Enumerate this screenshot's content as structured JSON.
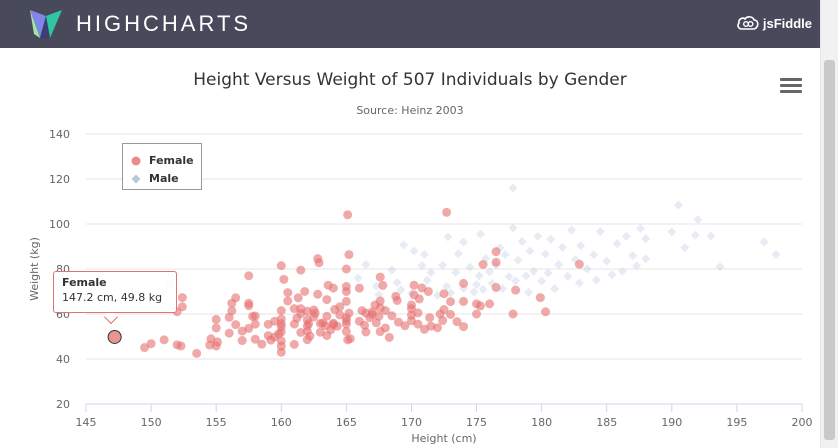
{
  "header": {
    "brand": "HIGHCHARTS",
    "jsfiddle_label": "jsFiddle"
  },
  "menu_icon": "hamburger-icon",
  "colors": {
    "female": "#e66f6f",
    "male": "#b9c7dc",
    "header_bg": "#484a5c"
  },
  "chart_data": {
    "type": "scatter",
    "title": "Height Versus Weight of 507 Individuals by Gender",
    "subtitle": "Source: Heinz 2003",
    "xlabel": "Height (cm)",
    "ylabel": "Weight (kg)",
    "xlim": [
      145,
      200
    ],
    "ylim": [
      20,
      140
    ],
    "xticks": [
      "145",
      "150",
      "155",
      "160",
      "165",
      "170",
      "175",
      "180",
      "185",
      "190",
      "195",
      "200"
    ],
    "yticks": [
      "20",
      "40",
      "60",
      "80",
      "100",
      "120",
      "140"
    ],
    "legend_position": "top-left",
    "series": [
      {
        "name": "Female",
        "color": "#e66f6f",
        "marker": "circle",
        "points": [
          [
            147.2,
            49.8
          ],
          [
            149.5,
            45.1
          ],
          [
            150.0,
            46.8
          ],
          [
            151.0,
            48.5
          ],
          [
            151.5,
            73.2
          ],
          [
            152.0,
            46.3
          ],
          [
            152.3,
            45.8
          ],
          [
            152.4,
            67.3
          ],
          [
            152.0,
            61.0
          ],
          [
            152.4,
            63.2
          ],
          [
            153.5,
            42.5
          ],
          [
            154.5,
            46.2
          ],
          [
            154.6,
            49.0
          ],
          [
            155.0,
            57.6
          ],
          [
            155.0,
            53.8
          ],
          [
            155.1,
            47.6
          ],
          [
            155.0,
            45.8
          ],
          [
            156.0,
            58.5
          ],
          [
            156.0,
            51.5
          ],
          [
            156.2,
            61.4
          ],
          [
            156.5,
            55.3
          ],
          [
            156.2,
            64.8
          ],
          [
            156.5,
            67.2
          ],
          [
            157.0,
            52.4
          ],
          [
            157.0,
            48.2
          ],
          [
            157.5,
            63.7
          ],
          [
            157.5,
            53.6
          ],
          [
            157.5,
            64.8
          ],
          [
            157.8,
            58.9
          ],
          [
            157.5,
            77.0
          ],
          [
            158.0,
            48.8
          ],
          [
            158.0,
            55.5
          ],
          [
            158.5,
            46.6
          ],
          [
            158.0,
            59.1
          ],
          [
            159.0,
            55.4
          ],
          [
            159.0,
            50.4
          ],
          [
            159.2,
            48.4
          ],
          [
            159.5,
            49.8
          ],
          [
            159.5,
            56.8
          ],
          [
            159.8,
            51.2
          ],
          [
            160.0,
            54.3
          ],
          [
            160.0,
            55.7
          ],
          [
            160.0,
            52.0
          ],
          [
            160.0,
            61.5
          ],
          [
            160.0,
            48.1
          ],
          [
            160.0,
            45.7
          ],
          [
            160.0,
            43.0
          ],
          [
            160.0,
            57.8
          ],
          [
            160.2,
            75.4
          ],
          [
            160.0,
            81.5
          ],
          [
            160.5,
            65.8
          ],
          [
            160.5,
            69.5
          ],
          [
            161.0,
            46.5
          ],
          [
            161.0,
            62.4
          ],
          [
            161.0,
            55.5
          ],
          [
            161.2,
            58.2
          ],
          [
            161.3,
            67.2
          ],
          [
            161.5,
            62.4
          ],
          [
            161.5,
            51.8
          ],
          [
            161.5,
            60.2
          ],
          [
            161.8,
            70.0
          ],
          [
            161.5,
            79.5
          ],
          [
            162.0,
            48.6
          ],
          [
            162.0,
            54.7
          ],
          [
            162.0,
            52.3
          ],
          [
            162.0,
            61.2
          ],
          [
            162.0,
            57.4
          ],
          [
            162.1,
            55.7
          ],
          [
            162.2,
            50.2
          ],
          [
            162.5,
            58.7
          ],
          [
            162.6,
            60.4
          ],
          [
            162.8,
            84.6
          ],
          [
            162.9,
            82.8
          ],
          [
            162.5,
            61.8
          ],
          [
            162.8,
            68.8
          ],
          [
            163.0,
            55.8
          ],
          [
            163.0,
            51.9
          ],
          [
            163.2,
            56.0
          ],
          [
            163.4,
            54.8
          ],
          [
            163.5,
            66.4
          ],
          [
            163.5,
            59.0
          ],
          [
            163.6,
            72.8
          ],
          [
            163.8,
            53.0
          ],
          [
            163.5,
            50.4
          ],
          [
            164.0,
            55.9
          ],
          [
            164.0,
            55.3
          ],
          [
            164.1,
            62.0
          ],
          [
            164.5,
            59.6
          ],
          [
            164.5,
            63.2
          ],
          [
            164.0,
            71.5
          ],
          [
            164.3,
            54.6
          ],
          [
            165.0,
            57.0
          ],
          [
            165.0,
            52.2
          ],
          [
            165.0,
            55.5
          ],
          [
            165.0,
            58.3
          ],
          [
            165.1,
            48.5
          ],
          [
            165.2,
            60.4
          ],
          [
            165.0,
            65.6
          ],
          [
            165.0,
            70.0
          ],
          [
            165.0,
            80.0
          ],
          [
            165.2,
            86.4
          ],
          [
            165.1,
            104.1
          ],
          [
            165.0,
            72.2
          ],
          [
            165.3,
            49.0
          ],
          [
            166.0,
            56.8
          ],
          [
            166.2,
            61.5
          ],
          [
            166.4,
            55.0
          ],
          [
            166.5,
            60.4
          ],
          [
            166.0,
            71.5
          ],
          [
            166.5,
            52.0
          ],
          [
            166.8,
            58.4
          ],
          [
            167.0,
            59.8
          ],
          [
            167.0,
            61.0
          ],
          [
            167.2,
            64.0
          ],
          [
            167.3,
            56.1
          ],
          [
            167.5,
            59.0
          ],
          [
            167.6,
            52.2
          ],
          [
            167.6,
            62.7
          ],
          [
            167.6,
            65.8
          ],
          [
            167.8,
            72.7
          ],
          [
            167.6,
            76.4
          ],
          [
            168.0,
            53.8
          ],
          [
            168.3,
            49.6
          ],
          [
            168.5,
            59.2
          ],
          [
            168.0,
            61.5
          ],
          [
            168.8,
            67.9
          ],
          [
            169.0,
            56.4
          ],
          [
            169.5,
            54.8
          ],
          [
            170.0,
            59.5
          ],
          [
            170.0,
            62.4
          ],
          [
            170.0,
            64.0
          ],
          [
            170.2,
            68.5
          ],
          [
            170.2,
            72.8
          ],
          [
            170.0,
            57.0
          ],
          [
            170.5,
            55.5
          ],
          [
            170.5,
            60.5
          ],
          [
            170.6,
            66.7
          ],
          [
            170.8,
            71.6
          ],
          [
            171.0,
            53.2
          ],
          [
            171.3,
            70.0
          ],
          [
            171.5,
            54.6
          ],
          [
            172.0,
            53.9
          ],
          [
            172.2,
            60.0
          ],
          [
            172.4,
            57.1
          ],
          [
            172.5,
            69.0
          ],
          [
            172.7,
            105.2
          ],
          [
            172.5,
            62.0
          ],
          [
            173.0,
            65.5
          ],
          [
            173.0,
            59.8
          ],
          [
            173.5,
            56.6
          ],
          [
            174.0,
            54.4
          ],
          [
            174.0,
            65.6
          ],
          [
            174.0,
            73.6
          ],
          [
            175.0,
            60.0
          ],
          [
            175.0,
            64.5
          ],
          [
            175.3,
            63.6
          ],
          [
            175.5,
            82.0
          ],
          [
            176.0,
            64.5
          ],
          [
            176.5,
            71.8
          ],
          [
            176.5,
            87.7
          ],
          [
            176.5,
            83.0
          ],
          [
            177.8,
            60.0
          ],
          [
            178.0,
            70.6
          ],
          [
            179.9,
            67.3
          ],
          [
            180.3,
            61.0
          ],
          [
            182.9,
            82.1
          ],
          [
            171.4,
            58.4
          ],
          [
            168.9,
            66.0
          ]
        ]
      },
      {
        "name": "Male",
        "color": "#b9c7dc",
        "marker": "diamond",
        "points": [
          [
            165.9,
            76.0
          ],
          [
            166.5,
            82.0
          ],
          [
            167.3,
            72.4
          ],
          [
            167.5,
            68.6
          ],
          [
            168.5,
            79.5
          ],
          [
            168.9,
            74.0
          ],
          [
            169.2,
            70.7
          ],
          [
            169.4,
            90.7
          ],
          [
            170.0,
            69.3
          ],
          [
            170.2,
            88.0
          ],
          [
            170.8,
            81.5
          ],
          [
            171.0,
            86.5
          ],
          [
            171.2,
            75.0
          ],
          [
            171.5,
            78.4
          ],
          [
            172.0,
            68.3
          ],
          [
            172.4,
            81.7
          ],
          [
            172.7,
            72.2
          ],
          [
            172.8,
            94.3
          ],
          [
            173.0,
            69.4
          ],
          [
            173.4,
            78.5
          ],
          [
            173.6,
            86.8
          ],
          [
            174.0,
            71.4
          ],
          [
            174.0,
            92.0
          ],
          [
            174.5,
            80.8
          ],
          [
            174.8,
            69.7
          ],
          [
            175.0,
            73.0
          ],
          [
            175.2,
            77.0
          ],
          [
            175.3,
            95.5
          ],
          [
            175.5,
            70.9
          ],
          [
            175.7,
            84.6
          ],
          [
            176.0,
            78.8
          ],
          [
            176.2,
            73.6
          ],
          [
            176.5,
            81.8
          ],
          [
            176.8,
            89.4
          ],
          [
            177.0,
            71.3
          ],
          [
            177.2,
            86.4
          ],
          [
            177.5,
            76.6
          ],
          [
            177.8,
            98.3
          ],
          [
            177.8,
            116.0
          ],
          [
            178.0,
            74.8
          ],
          [
            178.2,
            83.9
          ],
          [
            178.5,
            92.2
          ],
          [
            178.8,
            77.0
          ],
          [
            179.0,
            69.6
          ],
          [
            179.1,
            88.0
          ],
          [
            179.4,
            79.0
          ],
          [
            179.7,
            94.5
          ],
          [
            180.0,
            74.6
          ],
          [
            180.3,
            86.6
          ],
          [
            180.5,
            78.3
          ],
          [
            180.7,
            93.2
          ],
          [
            181.0,
            71.2
          ],
          [
            181.3,
            82.0
          ],
          [
            181.6,
            89.6
          ],
          [
            182.0,
            76.8
          ],
          [
            182.3,
            97.3
          ],
          [
            182.6,
            84.2
          ],
          [
            182.9,
            73.8
          ],
          [
            183.0,
            90.4
          ],
          [
            183.5,
            80.0
          ],
          [
            184.0,
            86.4
          ],
          [
            184.2,
            75.1
          ],
          [
            184.5,
            96.6
          ],
          [
            185.0,
            83.5
          ],
          [
            185.4,
            77.5
          ],
          [
            185.8,
            91.3
          ],
          [
            186.2,
            79.0
          ],
          [
            186.5,
            94.5
          ],
          [
            187.0,
            86.0
          ],
          [
            187.3,
            81.4
          ],
          [
            187.6,
            98.0
          ],
          [
            188.0,
            84.6
          ],
          [
            188.0,
            93.5
          ],
          [
            190.0,
            96.5
          ],
          [
            190.5,
            108.4
          ],
          [
            191.0,
            89.5
          ],
          [
            191.8,
            95.0
          ],
          [
            192.0,
            102.0
          ],
          [
            193.0,
            94.7
          ],
          [
            193.7,
            81.0
          ],
          [
            197.1,
            92.0
          ],
          [
            198.0,
            86.5
          ]
        ]
      }
    ]
  },
  "tooltip": {
    "series": "Female",
    "value": "147.2 cm, 49.8 kg"
  }
}
